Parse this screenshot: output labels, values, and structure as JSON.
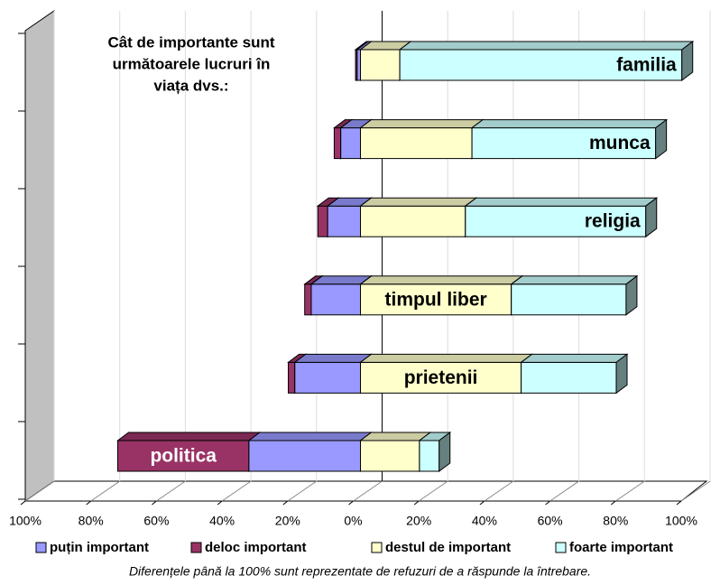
{
  "chart_data": {
    "type": "bar3d-diverging",
    "title": [
      "Cât de importante sunt",
      "următoarele lucruri în",
      "viața dvs.:"
    ],
    "categories": [
      "familia",
      "munca",
      "religia",
      "timpul liber",
      "prietenii",
      "politica"
    ],
    "series": [
      {
        "name": "puțin important",
        "color": "#9999ff",
        "values": [
          -1,
          -6,
          -10,
          -15,
          -20,
          -34
        ]
      },
      {
        "name": "deloc important",
        "color": "#993366",
        "values": [
          -0.5,
          -2,
          -3,
          -2,
          -2,
          -40
        ]
      },
      {
        "name": "destul de important",
        "color": "#ffffcc",
        "values": [
          12,
          34,
          32,
          46,
          49,
          18
        ]
      },
      {
        "name": "foarte important",
        "color": "#ccffff",
        "values": [
          86,
          56,
          55,
          35,
          29,
          6
        ]
      }
    ],
    "xlim": [
      -100,
      100
    ],
    "xticks": [
      {
        "value": -100,
        "label": "100%"
      },
      {
        "value": -80,
        "label": "80%"
      },
      {
        "value": -60,
        "label": "60%"
      },
      {
        "value": -40,
        "label": "40%"
      },
      {
        "value": -20,
        "label": "20%"
      },
      {
        "value": 0,
        "label": "0%"
      },
      {
        "value": 20,
        "label": "20%"
      },
      {
        "value": 40,
        "label": "40%"
      },
      {
        "value": 60,
        "label": "60%"
      },
      {
        "value": 80,
        "label": "80%"
      },
      {
        "value": 100,
        "label": "100%"
      }
    ],
    "grid": true,
    "legend": "bottom",
    "note": "Diferențele până la 100% sunt reprezentate de refuzuri de a răspunde la întrebare."
  }
}
